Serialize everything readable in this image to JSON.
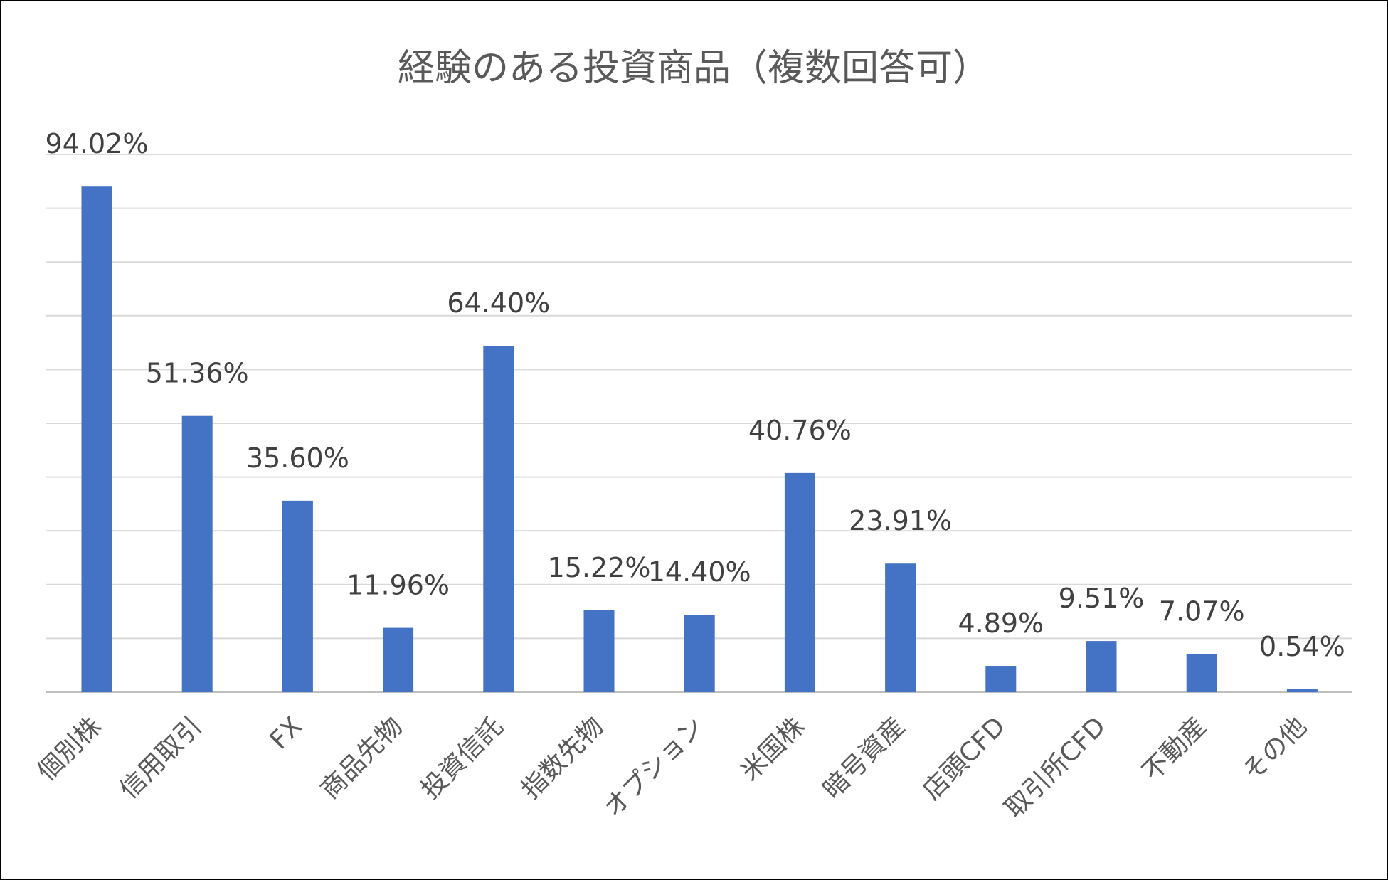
{
  "chart_data": {
    "type": "bar",
    "title": "経験のある投資商品（複数回答可）",
    "categories": [
      "個別株",
      "信用取引",
      "FX",
      "商品先物",
      "投資信託",
      "指数先物",
      "オプション",
      "米国株",
      "暗号資産",
      "店頭CFD",
      "取引所CFD",
      "不動産",
      "その他"
    ],
    "values": [
      94.02,
      51.36,
      35.6,
      11.96,
      64.4,
      15.22,
      14.4,
      40.76,
      23.91,
      4.89,
      9.51,
      7.07,
      0.54
    ],
    "data_labels": [
      "94.02%",
      "51.36%",
      "35.60%",
      "11.96%",
      "64.40%",
      "15.22%",
      "14.40%",
      "40.76%",
      "23.91%",
      "4.89%",
      "9.51%",
      "7.07%",
      "0.54%"
    ],
    "ylim": [
      0,
      100
    ],
    "grid": true,
    "colors": {
      "bar": "#4472c4"
    }
  }
}
